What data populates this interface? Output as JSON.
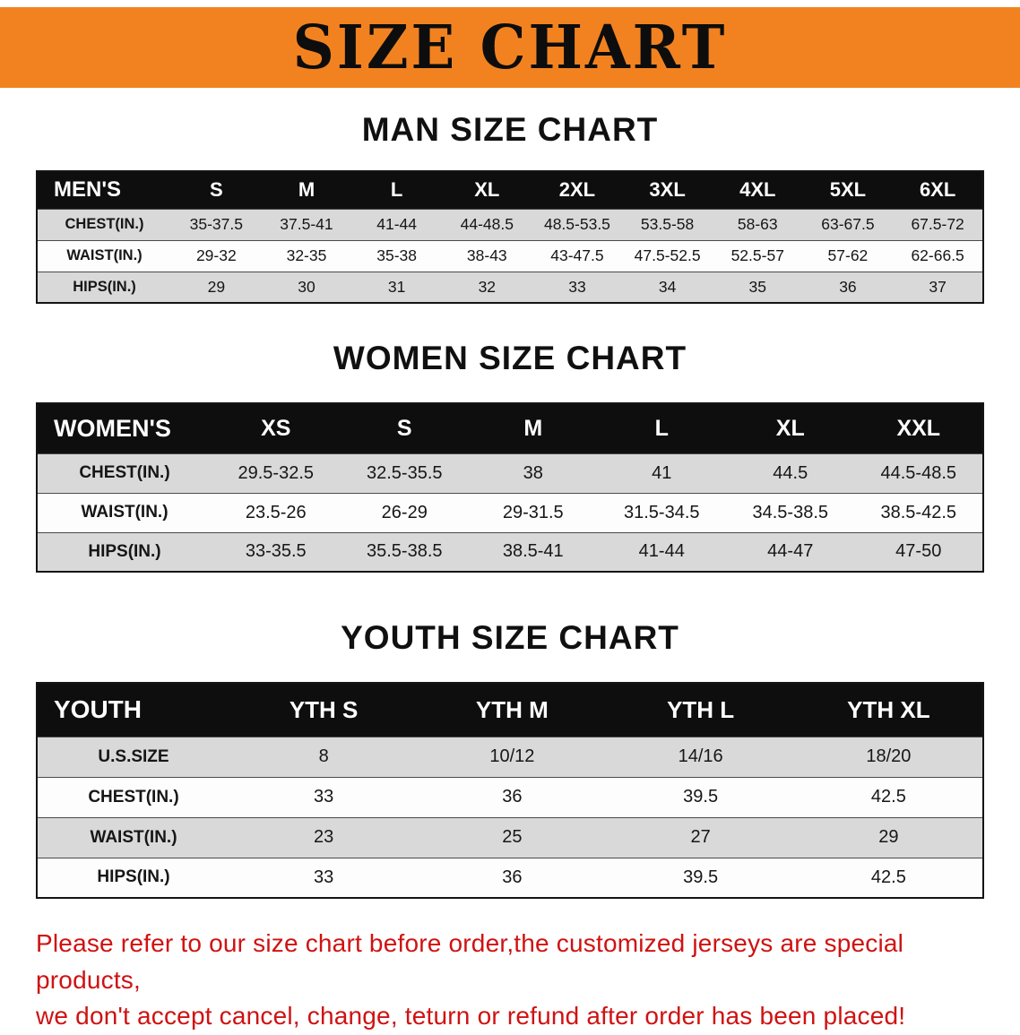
{
  "banner": {
    "title": "SIZE CHART",
    "bg_color": "#F28220"
  },
  "chart_data": [
    {
      "type": "table",
      "title": "MAN SIZE CHART",
      "columns": [
        "MEN'S",
        "S",
        "M",
        "L",
        "XL",
        "2XL",
        "3XL",
        "4XL",
        "5XL",
        "6XL"
      ],
      "rows": [
        [
          "CHEST(IN.)",
          "35-37.5",
          "37.5-41",
          "41-44",
          "44-48.5",
          "48.5-53.5",
          "53.5-58",
          "58-63",
          "63-67.5",
          "67.5-72"
        ],
        [
          "WAIST(IN.)",
          "29-32",
          "32-35",
          "35-38",
          "38-43",
          "43-47.5",
          "47.5-52.5",
          "52.5-57",
          "57-62",
          "62-66.5"
        ],
        [
          "HIPS(IN.)",
          "29",
          "30",
          "31",
          "32",
          "33",
          "34",
          "35",
          "36",
          "37"
        ]
      ]
    },
    {
      "type": "table",
      "title": "WOMEN SIZE CHART",
      "columns": [
        "WOMEN'S",
        "XS",
        "S",
        "M",
        "L",
        "XL",
        "XXL"
      ],
      "rows": [
        [
          "CHEST(IN.)",
          "29.5-32.5",
          "32.5-35.5",
          "38",
          "41",
          "44.5",
          "44.5-48.5"
        ],
        [
          "WAIST(IN.)",
          "23.5-26",
          "26-29",
          "29-31.5",
          "31.5-34.5",
          "34.5-38.5",
          "38.5-42.5"
        ],
        [
          "HIPS(IN.)",
          "33-35.5",
          "35.5-38.5",
          "38.5-41",
          "41-44",
          "44-47",
          "47-50"
        ]
      ]
    },
    {
      "type": "table",
      "title": "YOUTH SIZE CHART",
      "columns": [
        "YOUTH",
        "YTH S",
        "YTH M",
        "YTH L",
        "YTH XL"
      ],
      "rows": [
        [
          "U.S.SIZE",
          "8",
          "10/12",
          "14/16",
          "18/20"
        ],
        [
          "CHEST(IN.)",
          "33",
          "36",
          "39.5",
          "42.5"
        ],
        [
          "WAIST(IN.)",
          "23",
          "25",
          "27",
          "29"
        ],
        [
          "HIPS(IN.)",
          "33",
          "36",
          "39.5",
          "42.5"
        ]
      ]
    }
  ],
  "disclaimer": {
    "color": "#cf1212",
    "lines": [
      "Please refer to our size chart before order,the customized jerseys are special products,",
      "we don't accept cancel, change, teturn or refund after order has been placed!"
    ]
  }
}
